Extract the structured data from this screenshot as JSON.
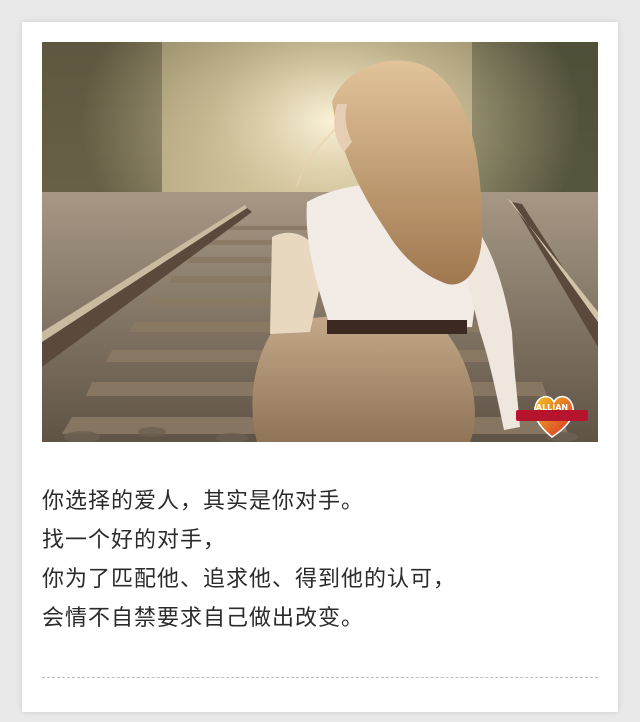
{
  "photo": {
    "watermark_text": "ALLIAN"
  },
  "poem": {
    "lines": [
      "你选择的爱人，其实是你对手。",
      "找一个好的对手，",
      "你为了匹配他、追求他、得到他的认可，",
      "会情不自禁要求自己做出改变。"
    ]
  },
  "colors": {
    "page_background": "#e9e9e9",
    "card_background": "#ffffff",
    "text": "#2b2b2b",
    "dash_rule": "#bdbdbd"
  }
}
